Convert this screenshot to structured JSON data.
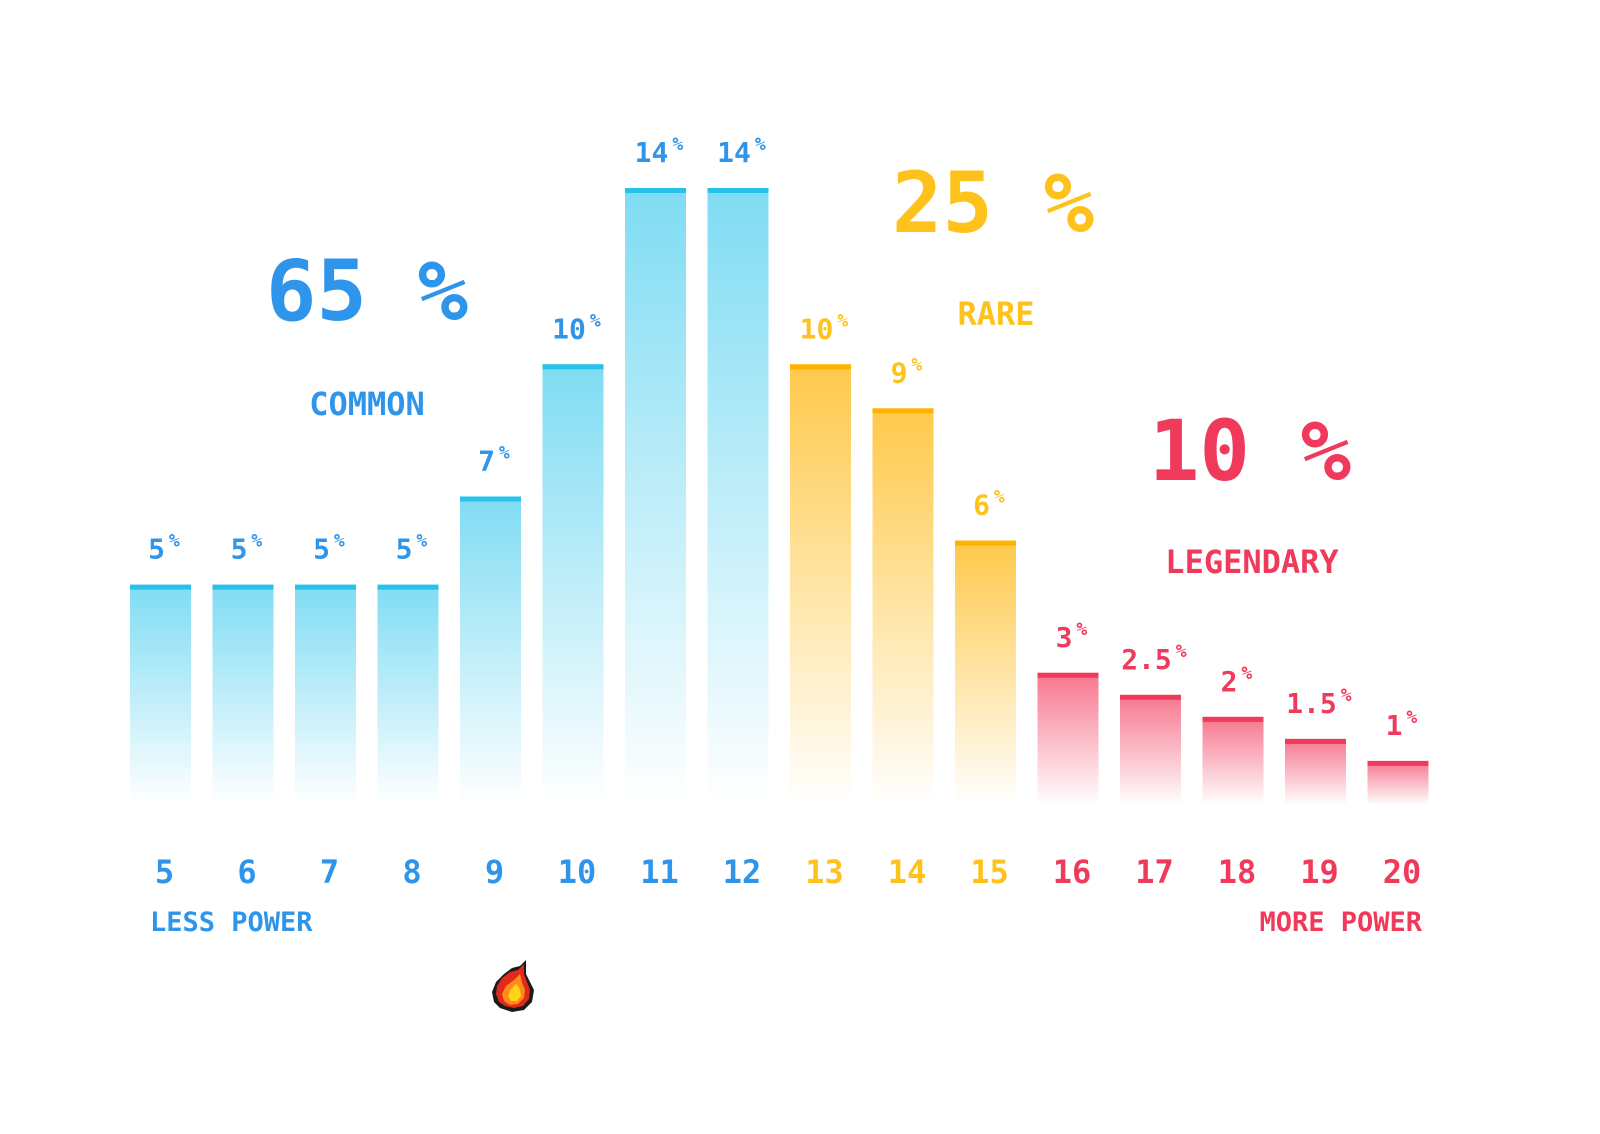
{
  "chart_data": {
    "type": "bar",
    "title": "",
    "xlabel": "",
    "ylabel": "",
    "ylim": [
      0,
      14
    ],
    "grid": false,
    "categories": [
      "5",
      "6",
      "7",
      "8",
      "9",
      "10",
      "11",
      "12",
      "13",
      "14",
      "15",
      "16",
      "17",
      "18",
      "19",
      "20"
    ],
    "values": [
      5,
      5,
      5,
      5,
      7,
      10,
      14,
      14,
      10,
      9,
      6,
      3,
      2.5,
      2,
      1.5,
      1
    ],
    "value_labels": [
      "5",
      "5",
      "5",
      "5",
      "7",
      "10",
      "14",
      "14",
      "10",
      "9",
      "6",
      "3",
      "2.5",
      "2",
      "1.5",
      "1"
    ],
    "percent_sign": "%",
    "bar_tier": [
      "common",
      "common",
      "common",
      "common",
      "common",
      "common",
      "common",
      "common",
      "rare",
      "rare",
      "rare",
      "legendary",
      "legendary",
      "legendary",
      "legendary",
      "legendary"
    ],
    "tiers": {
      "common": {
        "name": "COMMON",
        "total": "65 %",
        "text_color": "#2f95ea",
        "bar_color": "#7fdcf3",
        "cap_color": "#26c2ea"
      },
      "rare": {
        "name": "RARE",
        "total": "25 %",
        "text_color": "#ffc21c",
        "bar_color": "#ffc94a",
        "cap_color": "#ffb300"
      },
      "legendary": {
        "name": "LEGENDARY",
        "total": "10 %",
        "text_color": "#f03a5c",
        "bar_color": "#f6768e",
        "cap_color": "#f03a5c"
      }
    },
    "axis_left_label": "LESS POWER",
    "axis_right_label": "MORE POWER",
    "flame_icon": "flame-icon"
  }
}
